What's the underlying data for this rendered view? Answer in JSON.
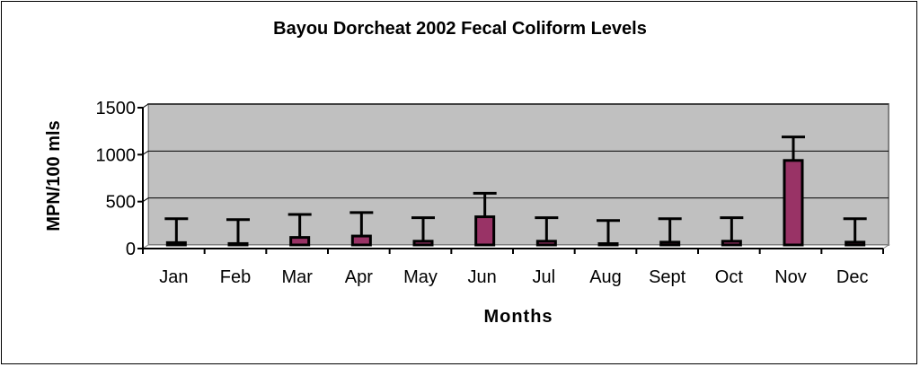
{
  "chart_data": {
    "type": "bar",
    "title": "Bayou Dorcheat 2002 Fecal Coliform Levels",
    "xlabel": "Months",
    "ylabel": "MPN/100 mls",
    "categories": [
      "Jan",
      "Feb",
      "Mar",
      "Apr",
      "May",
      "Jun",
      "Jul",
      "Aug",
      "Sept",
      "Oct",
      "Nov",
      "Dec"
    ],
    "values": [
      25,
      15,
      80,
      95,
      40,
      300,
      40,
      10,
      30,
      40,
      900,
      30
    ],
    "error_upper": [
      280,
      270,
      325,
      345,
      290,
      550,
      290,
      260,
      280,
      290,
      1150,
      280
    ],
    "yticks": [
      0,
      500,
      1000,
      1500
    ],
    "ylim": [
      0,
      1500
    ],
    "grid": true,
    "colors": {
      "bar": "#993366",
      "plot_bg": "#c0c0c0",
      "gridline": "#000000",
      "frame": "#808080"
    }
  }
}
